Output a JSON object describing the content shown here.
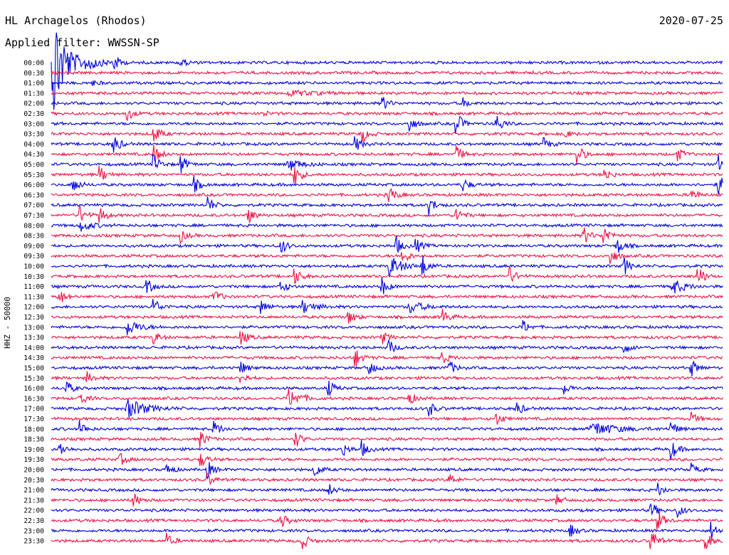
{
  "header": {
    "station": "HL Archagelos (Rhodos)",
    "date": "2020-07-25",
    "filter": "Applied filter: WWSSN-SP",
    "channel": "HHZ - 50000"
  },
  "colors": {
    "even": "#0000dd",
    "odd": "#ee1144"
  },
  "chart_data": {
    "type": "line",
    "title": "HL Archagelos (Rhodos)",
    "subtitle": "Applied filter: WWSSN-SP",
    "date": "2020-07-25",
    "ylabel": "HHZ - 50000",
    "rows": [
      "00:00",
      "00:30",
      "01:00",
      "01:30",
      "02:00",
      "02:30",
      "03:00",
      "03:30",
      "04:00",
      "04:30",
      "05:00",
      "05:30",
      "06:00",
      "06:30",
      "07:00",
      "07:30",
      "08:00",
      "08:30",
      "09:00",
      "09:30",
      "10:00",
      "10:30",
      "11:00",
      "11:30",
      "12:00",
      "12:30",
      "13:00",
      "13:30",
      "14:00",
      "14:30",
      "15:00",
      "15:30",
      "16:00",
      "16:30",
      "17:00",
      "17:30",
      "18:00",
      "18:30",
      "19:00",
      "19:30",
      "20:00",
      "20:30",
      "21:00",
      "21:30",
      "22:00",
      "22:30",
      "23:00",
      "23:30"
    ],
    "row_minutes": 30,
    "grid": false,
    "events": [
      {
        "row": 0,
        "t": 0.0,
        "amp": 90,
        "dur": 0.02
      },
      {
        "row": 0,
        "t": 0.05,
        "amp": 14,
        "dur": 0.02
      },
      {
        "row": 0,
        "t": 0.09,
        "amp": 14,
        "dur": 0.01
      },
      {
        "row": 0,
        "t": 0.19,
        "amp": 8,
        "dur": 0.01
      },
      {
        "row": 2,
        "t": 0.06,
        "amp": 4,
        "dur": 0.01
      },
      {
        "row": 3,
        "t": 0.35,
        "amp": 4,
        "dur": 0.04
      },
      {
        "row": 4,
        "t": 0.49,
        "amp": 12,
        "dur": 0.01
      },
      {
        "row": 4,
        "t": 0.61,
        "amp": 8,
        "dur": 0.01
      },
      {
        "row": 5,
        "t": 0.11,
        "amp": 12,
        "dur": 0.01
      },
      {
        "row": 5,
        "t": 0.31,
        "amp": 5,
        "dur": 0.01
      },
      {
        "row": 6,
        "t": 0.53,
        "amp": 14,
        "dur": 0.01
      },
      {
        "row": 6,
        "t": 0.6,
        "amp": 20,
        "dur": 0.01
      },
      {
        "row": 6,
        "t": 0.66,
        "amp": 16,
        "dur": 0.01
      },
      {
        "row": 7,
        "t": 0.15,
        "amp": 16,
        "dur": 0.01
      },
      {
        "row": 7,
        "t": 0.46,
        "amp": 14,
        "dur": 0.01
      },
      {
        "row": 7,
        "t": 0.76,
        "amp": 8,
        "dur": 0.01
      },
      {
        "row": 8,
        "t": 0.09,
        "amp": 18,
        "dur": 0.01
      },
      {
        "row": 8,
        "t": 0.45,
        "amp": 12,
        "dur": 0.01
      },
      {
        "row": 8,
        "t": 0.73,
        "amp": 10,
        "dur": 0.01
      },
      {
        "row": 9,
        "t": 0.15,
        "amp": 16,
        "dur": 0.01
      },
      {
        "row": 9,
        "t": 0.6,
        "amp": 14,
        "dur": 0.01
      },
      {
        "row": 9,
        "t": 0.78,
        "amp": 18,
        "dur": 0.01
      },
      {
        "row": 9,
        "t": 0.93,
        "amp": 10,
        "dur": 0.01
      },
      {
        "row": 10,
        "t": 0.15,
        "amp": 16,
        "dur": 0.01
      },
      {
        "row": 10,
        "t": 0.19,
        "amp": 16,
        "dur": 0.01
      },
      {
        "row": 10,
        "t": 0.35,
        "amp": 10,
        "dur": 0.02
      },
      {
        "row": 10,
        "t": 0.99,
        "amp": 14,
        "dur": 0.01
      },
      {
        "row": 11,
        "t": 0.07,
        "amp": 14,
        "dur": 0.01
      },
      {
        "row": 11,
        "t": 0.36,
        "amp": 18,
        "dur": 0.01
      },
      {
        "row": 11,
        "t": 0.82,
        "amp": 12,
        "dur": 0.01
      },
      {
        "row": 12,
        "t": 0.03,
        "amp": 14,
        "dur": 0.01
      },
      {
        "row": 12,
        "t": 0.21,
        "amp": 12,
        "dur": 0.01
      },
      {
        "row": 12,
        "t": 0.61,
        "amp": 12,
        "dur": 0.01
      },
      {
        "row": 12,
        "t": 0.99,
        "amp": 18,
        "dur": 0.01
      },
      {
        "row": 13,
        "t": 0.5,
        "amp": 16,
        "dur": 0.01
      },
      {
        "row": 13,
        "t": 0.95,
        "amp": 10,
        "dur": 0.01
      },
      {
        "row": 14,
        "t": 0.23,
        "amp": 14,
        "dur": 0.01
      },
      {
        "row": 14,
        "t": 0.56,
        "amp": 14,
        "dur": 0.01
      },
      {
        "row": 15,
        "t": 0.04,
        "amp": 14,
        "dur": 0.01
      },
      {
        "row": 15,
        "t": 0.07,
        "amp": 14,
        "dur": 0.01
      },
      {
        "row": 15,
        "t": 0.29,
        "amp": 14,
        "dur": 0.01
      },
      {
        "row": 15,
        "t": 0.6,
        "amp": 14,
        "dur": 0.01
      },
      {
        "row": 16,
        "t": 0.04,
        "amp": 8,
        "dur": 0.02
      },
      {
        "row": 17,
        "t": 0.19,
        "amp": 10,
        "dur": 0.01
      },
      {
        "row": 17,
        "t": 0.79,
        "amp": 14,
        "dur": 0.01
      },
      {
        "row": 17,
        "t": 0.82,
        "amp": 16,
        "dur": 0.01
      },
      {
        "row": 18,
        "t": 0.34,
        "amp": 12,
        "dur": 0.01
      },
      {
        "row": 18,
        "t": 0.51,
        "amp": 16,
        "dur": 0.01
      },
      {
        "row": 18,
        "t": 0.54,
        "amp": 12,
        "dur": 0.01
      },
      {
        "row": 18,
        "t": 0.84,
        "amp": 14,
        "dur": 0.01
      },
      {
        "row": 19,
        "t": 0.52,
        "amp": 14,
        "dur": 0.01
      },
      {
        "row": 19,
        "t": 0.83,
        "amp": 14,
        "dur": 0.01
      },
      {
        "row": 20,
        "t": 0.5,
        "amp": 16,
        "dur": 0.02
      },
      {
        "row": 20,
        "t": 0.55,
        "amp": 16,
        "dur": 0.01
      },
      {
        "row": 20,
        "t": 0.85,
        "amp": 14,
        "dur": 0.01
      },
      {
        "row": 21,
        "t": 0.36,
        "amp": 14,
        "dur": 0.01
      },
      {
        "row": 21,
        "t": 0.68,
        "amp": 14,
        "dur": 0.01
      },
      {
        "row": 21,
        "t": 0.96,
        "amp": 18,
        "dur": 0.01
      },
      {
        "row": 22,
        "t": 0.14,
        "amp": 12,
        "dur": 0.01
      },
      {
        "row": 22,
        "t": 0.34,
        "amp": 12,
        "dur": 0.01
      },
      {
        "row": 22,
        "t": 0.49,
        "amp": 14,
        "dur": 0.01
      },
      {
        "row": 22,
        "t": 0.92,
        "amp": 12,
        "dur": 0.02
      },
      {
        "row": 23,
        "t": 0.01,
        "amp": 12,
        "dur": 0.01
      },
      {
        "row": 23,
        "t": 0.24,
        "amp": 12,
        "dur": 0.01
      },
      {
        "row": 24,
        "t": 0.15,
        "amp": 14,
        "dur": 0.01
      },
      {
        "row": 24,
        "t": 0.31,
        "amp": 12,
        "dur": 0.01
      },
      {
        "row": 24,
        "t": 0.37,
        "amp": 10,
        "dur": 0.02
      },
      {
        "row": 24,
        "t": 0.53,
        "amp": 10,
        "dur": 0.02
      },
      {
        "row": 25,
        "t": 0.44,
        "amp": 12,
        "dur": 0.01
      },
      {
        "row": 25,
        "t": 0.58,
        "amp": 12,
        "dur": 0.01
      },
      {
        "row": 26,
        "t": 0.11,
        "amp": 12,
        "dur": 0.02
      },
      {
        "row": 26,
        "t": 0.7,
        "amp": 10,
        "dur": 0.01
      },
      {
        "row": 27,
        "t": 0.15,
        "amp": 10,
        "dur": 0.01
      },
      {
        "row": 27,
        "t": 0.28,
        "amp": 14,
        "dur": 0.01
      },
      {
        "row": 27,
        "t": 0.49,
        "amp": 10,
        "dur": 0.01
      },
      {
        "row": 28,
        "t": 0.5,
        "amp": 12,
        "dur": 0.01
      },
      {
        "row": 28,
        "t": 0.85,
        "amp": 10,
        "dur": 0.01
      },
      {
        "row": 29,
        "t": 0.45,
        "amp": 16,
        "dur": 0.01
      },
      {
        "row": 29,
        "t": 0.58,
        "amp": 10,
        "dur": 0.01
      },
      {
        "row": 30,
        "t": 0.28,
        "amp": 10,
        "dur": 0.01
      },
      {
        "row": 30,
        "t": 0.47,
        "amp": 12,
        "dur": 0.01
      },
      {
        "row": 30,
        "t": 0.59,
        "amp": 12,
        "dur": 0.01
      },
      {
        "row": 30,
        "t": 0.95,
        "amp": 14,
        "dur": 0.01
      },
      {
        "row": 31,
        "t": 0.05,
        "amp": 10,
        "dur": 0.01
      },
      {
        "row": 31,
        "t": 0.28,
        "amp": 10,
        "dur": 0.01
      },
      {
        "row": 32,
        "t": 0.02,
        "amp": 12,
        "dur": 0.01
      },
      {
        "row": 32,
        "t": 0.41,
        "amp": 14,
        "dur": 0.01
      },
      {
        "row": 32,
        "t": 0.76,
        "amp": 10,
        "dur": 0.01
      },
      {
        "row": 33,
        "t": 0.04,
        "amp": 12,
        "dur": 0.01
      },
      {
        "row": 33,
        "t": 0.35,
        "amp": 14,
        "dur": 0.02
      },
      {
        "row": 33,
        "t": 0.53,
        "amp": 10,
        "dur": 0.01
      },
      {
        "row": 34,
        "t": 0.11,
        "amp": 14,
        "dur": 0.03
      },
      {
        "row": 34,
        "t": 0.56,
        "amp": 12,
        "dur": 0.01
      },
      {
        "row": 34,
        "t": 0.69,
        "amp": 12,
        "dur": 0.01
      },
      {
        "row": 35,
        "t": 0.66,
        "amp": 10,
        "dur": 0.01
      },
      {
        "row": 35,
        "t": 0.95,
        "amp": 10,
        "dur": 0.01
      },
      {
        "row": 36,
        "t": 0.04,
        "amp": 12,
        "dur": 0.01
      },
      {
        "row": 36,
        "t": 0.24,
        "amp": 14,
        "dur": 0.01
      },
      {
        "row": 36,
        "t": 0.8,
        "amp": 10,
        "dur": 0.04
      },
      {
        "row": 36,
        "t": 0.92,
        "amp": 12,
        "dur": 0.01
      },
      {
        "row": 37,
        "t": 0.22,
        "amp": 14,
        "dur": 0.01
      },
      {
        "row": 37,
        "t": 0.36,
        "amp": 16,
        "dur": 0.01
      },
      {
        "row": 38,
        "t": 0.01,
        "amp": 12,
        "dur": 0.01
      },
      {
        "row": 38,
        "t": 0.43,
        "amp": 12,
        "dur": 0.01
      },
      {
        "row": 38,
        "t": 0.46,
        "amp": 12,
        "dur": 0.01
      },
      {
        "row": 38,
        "t": 0.92,
        "amp": 16,
        "dur": 0.01
      },
      {
        "row": 39,
        "t": 0.1,
        "amp": 10,
        "dur": 0.01
      },
      {
        "row": 39,
        "t": 0.22,
        "amp": 12,
        "dur": 0.01
      },
      {
        "row": 40,
        "t": 0.17,
        "amp": 10,
        "dur": 0.01
      },
      {
        "row": 40,
        "t": 0.23,
        "amp": 14,
        "dur": 0.01
      },
      {
        "row": 40,
        "t": 0.39,
        "amp": 12,
        "dur": 0.01
      },
      {
        "row": 40,
        "t": 0.95,
        "amp": 10,
        "dur": 0.01
      },
      {
        "row": 41,
        "t": 0.23,
        "amp": 10,
        "dur": 0.01
      },
      {
        "row": 41,
        "t": 0.59,
        "amp": 10,
        "dur": 0.01
      },
      {
        "row": 42,
        "t": 0.41,
        "amp": 10,
        "dur": 0.01
      },
      {
        "row": 42,
        "t": 0.9,
        "amp": 12,
        "dur": 0.01
      },
      {
        "row": 43,
        "t": 0.12,
        "amp": 12,
        "dur": 0.01
      },
      {
        "row": 43,
        "t": 0.75,
        "amp": 8,
        "dur": 0.01
      },
      {
        "row": 44,
        "t": 0.89,
        "amp": 14,
        "dur": 0.01
      },
      {
        "row": 44,
        "t": 0.93,
        "amp": 10,
        "dur": 0.01
      },
      {
        "row": 45,
        "t": 0.34,
        "amp": 12,
        "dur": 0.01
      },
      {
        "row": 45,
        "t": 0.9,
        "amp": 16,
        "dur": 0.01
      },
      {
        "row": 46,
        "t": 0.77,
        "amp": 10,
        "dur": 0.01
      },
      {
        "row": 46,
        "t": 0.98,
        "amp": 14,
        "dur": 0.01
      },
      {
        "row": 47,
        "t": 0.17,
        "amp": 10,
        "dur": 0.01
      },
      {
        "row": 47,
        "t": 0.37,
        "amp": 16,
        "dur": 0.01
      },
      {
        "row": 47,
        "t": 0.89,
        "amp": 20,
        "dur": 0.01
      },
      {
        "row": 47,
        "t": 0.97,
        "amp": 18,
        "dur": 0.01
      }
    ]
  }
}
